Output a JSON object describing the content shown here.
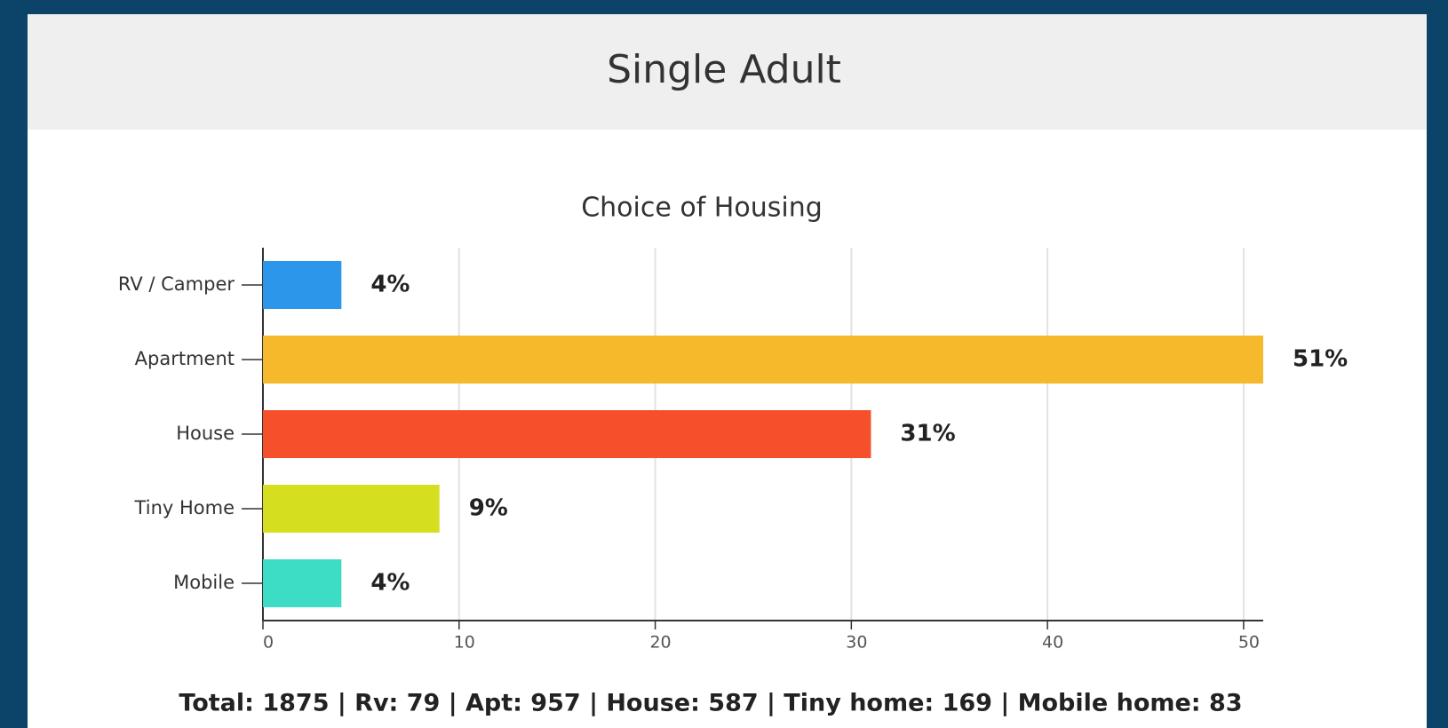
{
  "header": {
    "title": "Single Adult"
  },
  "chart_data": {
    "type": "bar",
    "orientation": "horizontal",
    "title": "Choice of Housing",
    "categories": [
      "RV / Camper",
      "Apartment",
      "House",
      "Tiny Home",
      "Mobile"
    ],
    "values": [
      4,
      51,
      31,
      9,
      4
    ],
    "value_labels": [
      "4%",
      "51%",
      "31%",
      "9%",
      "4%"
    ],
    "colors": [
      "#2b96ea",
      "#f6b92b",
      "#f5502b",
      "#d5df20",
      "#3ddcc4"
    ],
    "xlim": [
      0,
      51
    ],
    "xticks": [
      0,
      10,
      20,
      30,
      40,
      50
    ],
    "grid": true
  },
  "footer": "Total: 1875 | Rv: 79 | Apt: 957 | House: 587 | Tiny home: 169 | Mobile home: 83"
}
